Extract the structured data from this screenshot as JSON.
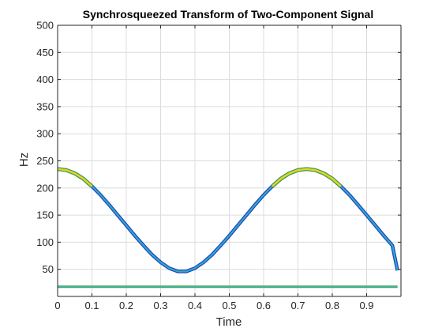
{
  "chart_data": {
    "type": "line",
    "title": "Synchrosqueezed Transform of Two-Component Signal",
    "xlabel": "Time",
    "ylabel": "Hz",
    "xlim": [
      0,
      1
    ],
    "ylim": [
      0,
      500
    ],
    "xticks": [
      "0",
      "0.1",
      "0.2",
      "0.3",
      "0.4",
      "0.5",
      "0.6",
      "0.7",
      "0.8",
      "0.9"
    ],
    "xtick_values": [
      0,
      0.1,
      0.2,
      0.3,
      0.4,
      0.5,
      0.6,
      0.7,
      0.8,
      0.9
    ],
    "yticks": [
      "50",
      "100",
      "150",
      "200",
      "250",
      "300",
      "350",
      "400",
      "450",
      "500"
    ],
    "ytick_values": [
      50,
      100,
      150,
      200,
      250,
      300,
      350,
      400,
      450,
      500
    ],
    "grid": true,
    "colors": {
      "grid": "#dcdcdc",
      "axis": "#262626",
      "ridge_edge": "#1f3fbf",
      "ridge_core": "#2fa8c9",
      "ridge_peak": "#e8d420",
      "ridge_peak_edge": "#3a9a58",
      "low_line": "#39b8a8",
      "low_line_edge": "#4c9a3c"
    },
    "series": [
      {
        "component": "chirp",
        "x": [
          0.0,
          0.025,
          0.05,
          0.075,
          0.1,
          0.125,
          0.15,
          0.175,
          0.2,
          0.225,
          0.25,
          0.275,
          0.3,
          0.325,
          0.35,
          0.375,
          0.4,
          0.425,
          0.45,
          0.475,
          0.5,
          0.525,
          0.55,
          0.575,
          0.6,
          0.625,
          0.65,
          0.675,
          0.7,
          0.725,
          0.75,
          0.775,
          0.8,
          0.825,
          0.85,
          0.875,
          0.9,
          0.925,
          0.95,
          0.975,
          0.99
        ],
        "y": [
          235,
          233,
          227,
          217,
          203,
          187,
          169,
          150,
          131,
          112,
          94,
          77,
          63,
          52,
          46,
          46,
          52,
          63,
          77,
          94,
          112,
          131,
          150,
          169,
          187,
          203,
          217,
          227,
          233,
          235,
          233,
          227,
          217,
          203,
          187,
          169,
          150,
          131,
          112,
          94,
          48
        ]
      },
      {
        "component": "tone",
        "x": [
          0,
          0.99
        ],
        "y": [
          18,
          18
        ]
      }
    ]
  }
}
